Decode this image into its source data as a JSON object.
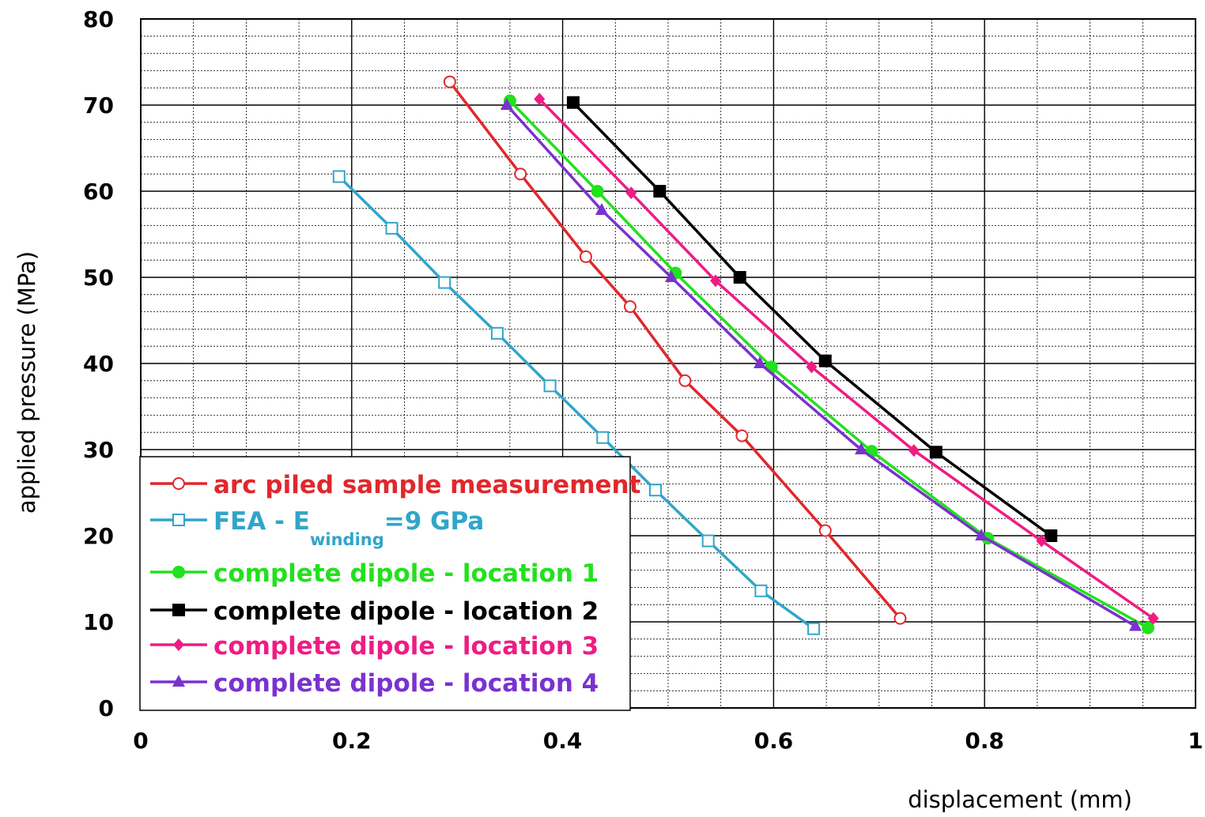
{
  "chart_data": {
    "type": "line",
    "xlabel": "displacement (mm)",
    "ylabel": "applied pressure (MPa)",
    "xlim": [
      0,
      1
    ],
    "ylim": [
      0,
      80
    ],
    "x_ticks": [
      "0",
      "0.2",
      "0.4",
      "0.6",
      "0.8",
      "1"
    ],
    "y_ticks": [
      "0",
      "10",
      "20",
      "30",
      "40",
      "50",
      "60",
      "70",
      "80"
    ],
    "grid": true,
    "legend_position": "bottom-left",
    "series": [
      {
        "name": "arc piled sample measurement",
        "color": "#e0282d",
        "marker": "open-circle",
        "points": [
          [
            0.293,
            72.7
          ],
          [
            0.36,
            62.0
          ],
          [
            0.422,
            52.4
          ],
          [
            0.464,
            46.6
          ],
          [
            0.516,
            38.0
          ],
          [
            0.57,
            31.6
          ],
          [
            0.649,
            20.6
          ],
          [
            0.72,
            10.4
          ]
        ]
      },
      {
        "name": "FEA - E",
        "name_subscript": "winding",
        "name_suffix": "=9 GPa",
        "color": "#31a5c9",
        "marker": "open-square",
        "points": [
          [
            0.188,
            61.7
          ],
          [
            0.238,
            55.7
          ],
          [
            0.288,
            49.4
          ],
          [
            0.338,
            43.5
          ],
          [
            0.388,
            37.4
          ],
          [
            0.438,
            31.4
          ],
          [
            0.488,
            25.3
          ],
          [
            0.538,
            19.4
          ],
          [
            0.588,
            13.6
          ],
          [
            0.638,
            9.2
          ]
        ]
      },
      {
        "name": "complete dipole - location 1",
        "color": "#22e11d",
        "marker": "filled-circle",
        "points": [
          [
            0.35,
            70.5
          ],
          [
            0.433,
            60.0
          ],
          [
            0.507,
            50.5
          ],
          [
            0.598,
            39.6
          ],
          [
            0.693,
            29.8
          ],
          [
            0.803,
            19.7
          ],
          [
            0.955,
            9.3
          ]
        ]
      },
      {
        "name": "complete dipole - location 2",
        "color": "#000000",
        "marker": "filled-square",
        "points": [
          [
            0.41,
            70.3
          ],
          [
            0.492,
            60.0
          ],
          [
            0.568,
            50.0
          ],
          [
            0.649,
            40.3
          ],
          [
            0.754,
            29.7
          ],
          [
            0.863,
            20.0
          ]
        ]
      },
      {
        "name": "complete dipole - location 3",
        "color": "#ef1c83",
        "marker": "filled-diamond",
        "points": [
          [
            0.378,
            70.7
          ],
          [
            0.465,
            59.8
          ],
          [
            0.545,
            49.6
          ],
          [
            0.636,
            39.6
          ],
          [
            0.733,
            29.9
          ],
          [
            0.854,
            19.4
          ],
          [
            0.96,
            10.4
          ]
        ]
      },
      {
        "name": "complete dipole - location 4",
        "color": "#7a32cf",
        "marker": "filled-triangle",
        "points": [
          [
            0.347,
            70.0
          ],
          [
            0.437,
            57.8
          ],
          [
            0.503,
            50.0
          ],
          [
            0.587,
            40.0
          ],
          [
            0.683,
            30.0
          ],
          [
            0.797,
            20.0
          ],
          [
            0.943,
            9.5
          ]
        ]
      }
    ]
  }
}
